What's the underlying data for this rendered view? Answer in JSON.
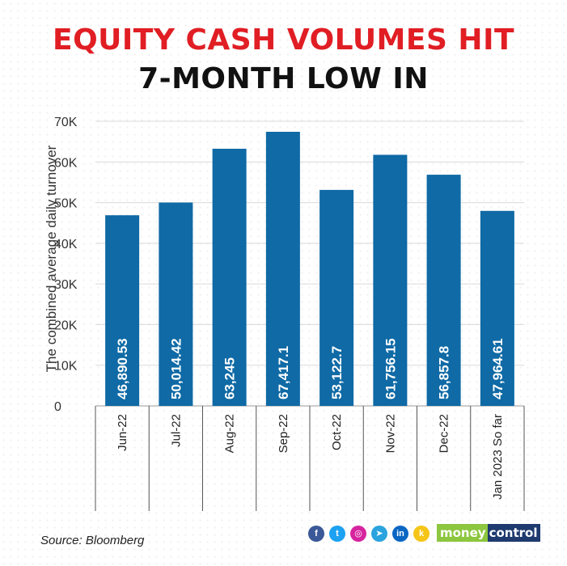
{
  "header": {
    "title_line1": "EQUITY CASH VOLUMES HIT",
    "title_line2": "7-MONTH LOW IN"
  },
  "chart_data": {
    "type": "bar",
    "ylabel": "The combined average daily turnover",
    "xlabel": "",
    "ylim": [
      0,
      70000
    ],
    "yticks": [
      0,
      10000,
      20000,
      30000,
      40000,
      50000,
      60000,
      70000
    ],
    "ytick_labels": [
      "0",
      "10K",
      "20K",
      "30K",
      "40K",
      "50K",
      "60K",
      "70K"
    ],
    "grid": true,
    "categories": [
      "Jun-22",
      "Jul-22",
      "Aug-22",
      "Sep-22",
      "Oct-22",
      "Nov-22",
      "Dec-22",
      "Jan 2023 So far"
    ],
    "values": [
      46890.53,
      50014.42,
      63245,
      67417.1,
      53122.7,
      61756.15,
      56857.8,
      47964.61
    ],
    "value_labels": [
      "46,890.53",
      "50,014.42",
      "63,245",
      "67,417.1",
      "53,122.7",
      "61,756.15",
      "56,857.8",
      "47,964.61"
    ],
    "bar_color": "#0f6aa5",
    "value_label_color": "#ffffff"
  },
  "footer": {
    "source": "Source: Bloomberg",
    "brand_part1": "money",
    "brand_part2": "control",
    "social_icons": [
      {
        "name": "facebook-icon",
        "glyph": "f",
        "color": "#3b5998"
      },
      {
        "name": "twitter-icon",
        "glyph": "t",
        "color": "#1da1f2"
      },
      {
        "name": "instagram-icon",
        "glyph": "◎",
        "color": "#d6249f"
      },
      {
        "name": "telegram-icon",
        "glyph": "➤",
        "color": "#2aa3df"
      },
      {
        "name": "linkedin-icon",
        "glyph": "in",
        "color": "#0a66c2"
      },
      {
        "name": "koo-icon",
        "glyph": "k",
        "color": "#f5c518"
      }
    ]
  }
}
